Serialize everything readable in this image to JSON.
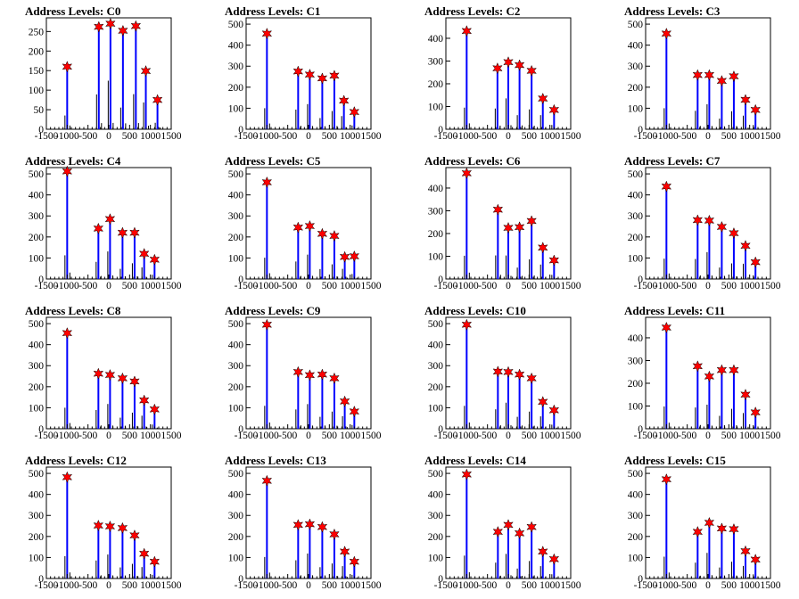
{
  "chart_data": [
    {
      "type": "bar",
      "title": "Address Levels: C0",
      "xlabel": "",
      "ylabel": "",
      "xlim": [
        -1500,
        1500
      ],
      "ylim": [
        0,
        285
      ],
      "yticks": [
        0,
        50,
        100,
        150,
        200,
        250
      ],
      "xtick_labels": [
        "-1500",
        "-1000",
        "-500",
        "0",
        "500",
        "1000",
        "1500"
      ],
      "peaks": [
        {
          "x": -1000,
          "y": 160
        },
        {
          "x": -240,
          "y": 262
        },
        {
          "x": 40,
          "y": 270
        },
        {
          "x": 340,
          "y": 252
        },
        {
          "x": 650,
          "y": 264
        },
        {
          "x": 890,
          "y": 149
        },
        {
          "x": 1170,
          "y": 75
        }
      ]
    },
    {
      "type": "bar",
      "title": "Address Levels: C1",
      "xlabel": "",
      "ylabel": "",
      "xlim": [
        -1500,
        1500
      ],
      "ylim": [
        0,
        530
      ],
      "yticks": [
        0,
        100,
        200,
        300,
        400,
        500
      ],
      "xtick_labels": [
        "-1500",
        "-1000",
        "-500",
        "0",
        "500",
        "1000",
        "1500"
      ],
      "peaks": [
        {
          "x": -1000,
          "y": 455
        },
        {
          "x": -250,
          "y": 275
        },
        {
          "x": 30,
          "y": 260
        },
        {
          "x": 330,
          "y": 242
        },
        {
          "x": 620,
          "y": 255
        },
        {
          "x": 850,
          "y": 136
        },
        {
          "x": 1100,
          "y": 82
        }
      ]
    },
    {
      "type": "bar",
      "title": "Address Levels: C2",
      "xlabel": "",
      "ylabel": "",
      "xlim": [
        -1500,
        1500
      ],
      "ylim": [
        0,
        490
      ],
      "yticks": [
        0,
        100,
        200,
        300,
        400
      ],
      "xtick_labels": [
        "-1500",
        "-1000",
        "-500",
        "0",
        "500",
        "1000",
        "1500"
      ],
      "peaks": [
        {
          "x": -1000,
          "y": 432
        },
        {
          "x": -260,
          "y": 268
        },
        {
          "x": 0,
          "y": 295
        },
        {
          "x": 270,
          "y": 282
        },
        {
          "x": 560,
          "y": 257
        },
        {
          "x": 830,
          "y": 135
        },
        {
          "x": 1100,
          "y": 85
        }
      ]
    },
    {
      "type": "bar",
      "title": "Address Levels: C3",
      "xlabel": "",
      "ylabel": "",
      "xlim": [
        -1500,
        1500
      ],
      "ylim": [
        0,
        530
      ],
      "yticks": [
        0,
        100,
        200,
        300,
        400,
        500
      ],
      "xtick_labels": [
        "-1500",
        "-1000",
        "-500",
        "0",
        "500",
        "1000",
        "1500"
      ],
      "peaks": [
        {
          "x": -1000,
          "y": 455
        },
        {
          "x": -250,
          "y": 258
        },
        {
          "x": 30,
          "y": 258
        },
        {
          "x": 330,
          "y": 230
        },
        {
          "x": 620,
          "y": 252
        },
        {
          "x": 900,
          "y": 140
        },
        {
          "x": 1140,
          "y": 92
        }
      ]
    },
    {
      "type": "bar",
      "title": "Address Levels: C4",
      "xlabel": "",
      "ylabel": "",
      "xlim": [
        -1500,
        1500
      ],
      "ylim": [
        0,
        530
      ],
      "yticks": [
        0,
        100,
        200,
        300,
        400,
        500
      ],
      "xtick_labels": [
        "-1500",
        "-1000",
        "-500",
        "0",
        "500",
        "1000",
        "1500"
      ],
      "peaks": [
        {
          "x": -1000,
          "y": 512
        },
        {
          "x": -250,
          "y": 240
        },
        {
          "x": 30,
          "y": 285
        },
        {
          "x": 330,
          "y": 220
        },
        {
          "x": 620,
          "y": 220
        },
        {
          "x": 850,
          "y": 120
        },
        {
          "x": 1100,
          "y": 92
        }
      ]
    },
    {
      "type": "bar",
      "title": "Address Levels: C5",
      "xlabel": "",
      "ylabel": "",
      "xlim": [
        -1500,
        1500
      ],
      "ylim": [
        0,
        530
      ],
      "yticks": [
        0,
        100,
        200,
        300,
        400,
        500
      ],
      "xtick_labels": [
        "-1500",
        "-1000",
        "-500",
        "0",
        "500",
        "1000",
        "1500"
      ],
      "peaks": [
        {
          "x": -1000,
          "y": 460
        },
        {
          "x": -250,
          "y": 245
        },
        {
          "x": 30,
          "y": 252
        },
        {
          "x": 330,
          "y": 215
        },
        {
          "x": 620,
          "y": 205
        },
        {
          "x": 870,
          "y": 105
        },
        {
          "x": 1100,
          "y": 108
        }
      ]
    },
    {
      "type": "bar",
      "title": "Address Levels: C6",
      "xlabel": "",
      "ylabel": "",
      "xlim": [
        -1500,
        1500
      ],
      "ylim": [
        0,
        490
      ],
      "yticks": [
        0,
        100,
        200,
        300,
        400
      ],
      "xtick_labels": [
        "-1500",
        "-1000",
        "-500",
        "0",
        "500",
        "1000",
        "1500"
      ],
      "peaks": [
        {
          "x": -1000,
          "y": 465
        },
        {
          "x": -250,
          "y": 305
        },
        {
          "x": 0,
          "y": 225
        },
        {
          "x": 270,
          "y": 228
        },
        {
          "x": 560,
          "y": 255
        },
        {
          "x": 830,
          "y": 138
        },
        {
          "x": 1100,
          "y": 82
        }
      ]
    },
    {
      "type": "bar",
      "title": "Address Levels: C7",
      "xlabel": "",
      "ylabel": "",
      "xlim": [
        -1500,
        1500
      ],
      "ylim": [
        0,
        530
      ],
      "yticks": [
        0,
        100,
        200,
        300,
        400,
        500
      ],
      "xtick_labels": [
        "-1500",
        "-1000",
        "-500",
        "0",
        "500",
        "1000",
        "1500"
      ],
      "peaks": [
        {
          "x": -1000,
          "y": 440
        },
        {
          "x": -250,
          "y": 280
        },
        {
          "x": 30,
          "y": 278
        },
        {
          "x": 330,
          "y": 248
        },
        {
          "x": 620,
          "y": 218
        },
        {
          "x": 900,
          "y": 158
        },
        {
          "x": 1140,
          "y": 80
        }
      ]
    },
    {
      "type": "bar",
      "title": "Address Levels: C8",
      "xlabel": "",
      "ylabel": "",
      "xlim": [
        -1500,
        1500
      ],
      "ylim": [
        0,
        530
      ],
      "yticks": [
        0,
        100,
        200,
        300,
        400,
        500
      ],
      "xtick_labels": [
        "-1500",
        "-1000",
        "-500",
        "0",
        "500",
        "1000",
        "1500"
      ],
      "peaks": [
        {
          "x": -1000,
          "y": 455
        },
        {
          "x": -250,
          "y": 262
        },
        {
          "x": 30,
          "y": 256
        },
        {
          "x": 330,
          "y": 240
        },
        {
          "x": 620,
          "y": 225
        },
        {
          "x": 850,
          "y": 135
        },
        {
          "x": 1100,
          "y": 92
        }
      ]
    },
    {
      "type": "bar",
      "title": "Address Levels: C9",
      "xlabel": "",
      "ylabel": "",
      "xlim": [
        -1500,
        1500
      ],
      "ylim": [
        0,
        530
      ],
      "yticks": [
        0,
        100,
        200,
        300,
        400,
        500
      ],
      "xtick_labels": [
        "-1500",
        "-1000",
        "-500",
        "0",
        "500",
        "1000",
        "1500"
      ],
      "peaks": [
        {
          "x": -1000,
          "y": 495
        },
        {
          "x": -250,
          "y": 270
        },
        {
          "x": 30,
          "y": 255
        },
        {
          "x": 330,
          "y": 258
        },
        {
          "x": 620,
          "y": 240
        },
        {
          "x": 870,
          "y": 130
        },
        {
          "x": 1100,
          "y": 82
        }
      ]
    },
    {
      "type": "bar",
      "title": "Address Levels: C10",
      "xlabel": "",
      "ylabel": "",
      "xlim": [
        -1500,
        1500
      ],
      "ylim": [
        0,
        530
      ],
      "yticks": [
        0,
        100,
        200,
        300,
        400,
        500
      ],
      "xtick_labels": [
        "-1500",
        "-1000",
        "-500",
        "0",
        "500",
        "1000",
        "1500"
      ],
      "peaks": [
        {
          "x": -1000,
          "y": 495
        },
        {
          "x": -250,
          "y": 272
        },
        {
          "x": 0,
          "y": 270
        },
        {
          "x": 270,
          "y": 258
        },
        {
          "x": 560,
          "y": 240
        },
        {
          "x": 830,
          "y": 128
        },
        {
          "x": 1100,
          "y": 88
        }
      ]
    },
    {
      "type": "bar",
      "title": "Address Levels: C11",
      "xlabel": "",
      "ylabel": "",
      "xlim": [
        -1500,
        1500
      ],
      "ylim": [
        0,
        490
      ],
      "yticks": [
        0,
        100,
        200,
        300,
        400
      ],
      "xtick_labels": [
        "-1500",
        "-1000",
        "-500",
        "0",
        "500",
        "1000",
        "1500"
      ],
      "peaks": [
        {
          "x": -1000,
          "y": 445
        },
        {
          "x": -250,
          "y": 275
        },
        {
          "x": 30,
          "y": 230
        },
        {
          "x": 330,
          "y": 258
        },
        {
          "x": 620,
          "y": 258
        },
        {
          "x": 900,
          "y": 150
        },
        {
          "x": 1140,
          "y": 72
        }
      ]
    },
    {
      "type": "bar",
      "title": "Address Levels: C12",
      "xlabel": "",
      "ylabel": "",
      "xlim": [
        -1500,
        1500
      ],
      "ylim": [
        0,
        530
      ],
      "yticks": [
        0,
        100,
        200,
        300,
        400,
        500
      ],
      "xtick_labels": [
        "-1500",
        "-1000",
        "-500",
        "0",
        "500",
        "1000",
        "1500"
      ],
      "peaks": [
        {
          "x": -1000,
          "y": 482
        },
        {
          "x": -250,
          "y": 252
        },
        {
          "x": 30,
          "y": 248
        },
        {
          "x": 330,
          "y": 240
        },
        {
          "x": 620,
          "y": 205
        },
        {
          "x": 850,
          "y": 118
        },
        {
          "x": 1100,
          "y": 80
        }
      ]
    },
    {
      "type": "bar",
      "title": "Address Levels: C13",
      "xlabel": "",
      "ylabel": "",
      "xlim": [
        -1500,
        1500
      ],
      "ylim": [
        0,
        530
      ],
      "yticks": [
        0,
        100,
        200,
        300,
        400,
        500
      ],
      "xtick_labels": [
        "-1500",
        "-1000",
        "-500",
        "0",
        "500",
        "1000",
        "1500"
      ],
      "peaks": [
        {
          "x": -1000,
          "y": 465
        },
        {
          "x": -250,
          "y": 255
        },
        {
          "x": 30,
          "y": 258
        },
        {
          "x": 330,
          "y": 245
        },
        {
          "x": 620,
          "y": 210
        },
        {
          "x": 870,
          "y": 128
        },
        {
          "x": 1100,
          "y": 80
        }
      ]
    },
    {
      "type": "bar",
      "title": "Address Levels: C14",
      "xlabel": "",
      "ylabel": "",
      "xlim": [
        -1500,
        1500
      ],
      "ylim": [
        0,
        530
      ],
      "yticks": [
        0,
        100,
        200,
        300,
        400,
        500
      ],
      "xtick_labels": [
        "-1500",
        "-1000",
        "-500",
        "0",
        "500",
        "1000",
        "1500"
      ],
      "peaks": [
        {
          "x": -1000,
          "y": 495
        },
        {
          "x": -250,
          "y": 222
        },
        {
          "x": 0,
          "y": 255
        },
        {
          "x": 270,
          "y": 215
        },
        {
          "x": 560,
          "y": 245
        },
        {
          "x": 830,
          "y": 128
        },
        {
          "x": 1100,
          "y": 92
        }
      ]
    },
    {
      "type": "bar",
      "title": "Address Levels: C15",
      "xlabel": "",
      "ylabel": "",
      "xlim": [
        -1500,
        1500
      ],
      "ylim": [
        0,
        530
      ],
      "yticks": [
        0,
        100,
        200,
        300,
        400,
        500
      ],
      "xtick_labels": [
        "-1500",
        "-1000",
        "-500",
        "0",
        "500",
        "1000",
        "1500"
      ],
      "peaks": [
        {
          "x": -1000,
          "y": 472
        },
        {
          "x": -250,
          "y": 222
        },
        {
          "x": 30,
          "y": 265
        },
        {
          "x": 330,
          "y": 238
        },
        {
          "x": 620,
          "y": 235
        },
        {
          "x": 900,
          "y": 130
        },
        {
          "x": 1140,
          "y": 90
        }
      ]
    }
  ],
  "colors": {
    "bar": "#0000ff",
    "peak_marker": "#ff0000",
    "marker_edge": "#000000",
    "frame": "#000000",
    "background": "#ffffff"
  }
}
